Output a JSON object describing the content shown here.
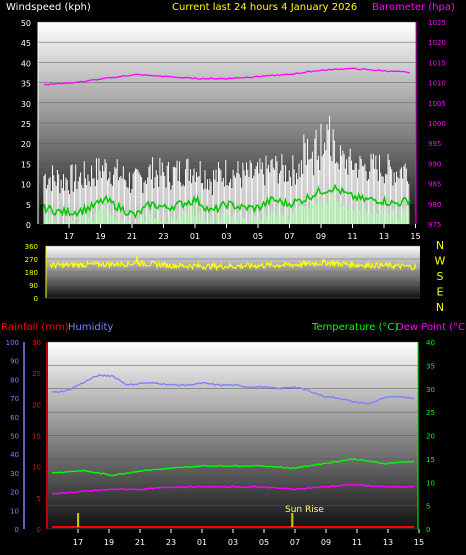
{
  "header": {
    "left_label": "Windspeed (kph)",
    "center_label": "Current last 24 hours 4 January 2026",
    "right_label": "Barometer (hpa)"
  },
  "colors": {
    "windspeed": "#ffffff",
    "wind_avg": "#00cc00",
    "wind_low": "#c8ffc8",
    "barometer": "#ff00ff",
    "wind_dir": "#ffff00",
    "rainfall": "#ff0000",
    "humidity": "#8080ff",
    "temperature": "#00ff00",
    "dewpoint": "#ff00ff",
    "sunrise": "#cccc00"
  },
  "chart_data": [
    {
      "type": "line",
      "name": "wind-barometer",
      "x_ticks": [
        "17",
        "19",
        "21",
        "23",
        "01",
        "03",
        "05",
        "07",
        "09",
        "11",
        "13",
        "15"
      ],
      "y_left": {
        "label": "Windspeed (kph)",
        "min": 0,
        "max": 50,
        "ticks": [
          0,
          5,
          10,
          15,
          20,
          25,
          30,
          35,
          40,
          45,
          50
        ]
      },
      "y_right": {
        "label": "Barometer (hpa)",
        "min": 975,
        "max": 1025,
        "ticks": [
          975,
          980,
          985,
          990,
          995,
          1000,
          1005,
          1010,
          1015,
          1020,
          1025
        ]
      },
      "series": [
        {
          "key": "barometer",
          "axis": "right",
          "x_hours": [
            0,
            2,
            4,
            6,
            8,
            10,
            12,
            14,
            16,
            18,
            20,
            22,
            24
          ],
          "values": [
            1009.5,
            1010,
            1011,
            1012,
            1011.5,
            1011,
            1011,
            1011.5,
            1012,
            1013,
            1013.5,
            1013,
            1012.5
          ]
        },
        {
          "key": "wind_avg",
          "axis": "left",
          "x_hours": [
            0,
            1,
            2,
            3,
            4,
            5,
            6,
            7,
            8,
            9,
            10,
            11,
            12,
            13,
            14,
            15,
            16,
            17,
            18,
            19,
            20,
            21,
            22,
            23,
            24
          ],
          "values": [
            4,
            3,
            3,
            4,
            6,
            4,
            2,
            5,
            4,
            5,
            6,
            3,
            5,
            4,
            4,
            6,
            5,
            6,
            8,
            9,
            7,
            6,
            6,
            5,
            6
          ]
        }
      ]
    },
    {
      "type": "line",
      "name": "wind-direction",
      "y_ticks": [
        0,
        90,
        180,
        270,
        360
      ],
      "y_min": 0,
      "y_max": 360,
      "compass_labels": [
        "N",
        "W",
        "S",
        "E",
        "N"
      ],
      "series": [
        {
          "key": "wind_dir",
          "x_hours": [
            0,
            2,
            4,
            6,
            8,
            10,
            12,
            14,
            16,
            18,
            20,
            22,
            24
          ],
          "values": [
            225,
            230,
            235,
            240,
            225,
            220,
            220,
            225,
            230,
            245,
            230,
            225,
            215
          ]
        }
      ]
    },
    {
      "type": "line",
      "name": "temp-humidity-rain",
      "legend": {
        "rainfall": "Rainfall (mm)",
        "humidity": "Humidity",
        "temperature": "Temperature (°C)",
        "dewpoint": "Dew Point (°C)"
      },
      "x_ticks": [
        "17",
        "19",
        "21",
        "23",
        "01",
        "03",
        "05",
        "07",
        "09",
        "11",
        "13",
        "15"
      ],
      "y_humidity": {
        "min": 0,
        "max": 100,
        "ticks": [
          0,
          10,
          20,
          30,
          40,
          50,
          60,
          70,
          80,
          90,
          100
        ]
      },
      "y_rain": {
        "min": 0,
        "max": 30,
        "ticks": [
          0,
          5,
          10,
          15,
          20,
          25,
          30
        ]
      },
      "y_temp": {
        "min": 0,
        "max": 40,
        "ticks": [
          0,
          5,
          10,
          15,
          20,
          25,
          30,
          35,
          40
        ]
      },
      "series": [
        {
          "key": "humidity",
          "axis": "humidity",
          "x_hours": [
            0,
            1,
            2,
            3,
            4,
            5,
            6,
            7,
            8,
            9,
            10,
            11,
            12,
            13,
            14,
            15,
            16,
            17,
            18,
            19,
            20,
            21,
            22,
            23,
            24
          ],
          "values": [
            73,
            74,
            78,
            82,
            82,
            77,
            78,
            78,
            77,
            77,
            78,
            77,
            77,
            76,
            76,
            75,
            76,
            74,
            71,
            70,
            68,
            67,
            70,
            71,
            70
          ]
        },
        {
          "key": "temperature",
          "axis": "temp",
          "x_hours": [
            0,
            2,
            4,
            6,
            8,
            10,
            12,
            14,
            16,
            18,
            20,
            22,
            24
          ],
          "values": [
            12,
            12.5,
            11.5,
            12.5,
            13,
            13.5,
            13.5,
            13.5,
            13,
            14,
            15,
            14,
            14.5
          ]
        },
        {
          "key": "dewpoint",
          "axis": "temp",
          "x_hours": [
            0,
            2,
            4,
            6,
            8,
            10,
            12,
            14,
            16,
            18,
            20,
            22,
            24
          ],
          "values": [
            7.5,
            8,
            8.5,
            8.5,
            9,
            9,
            9,
            9,
            8.5,
            9,
            9.5,
            9,
            9
          ]
        },
        {
          "key": "rainfall",
          "axis": "rain",
          "x_hours": [
            0,
            24
          ],
          "values": [
            0,
            0
          ]
        }
      ],
      "annotation": {
        "label": "Sun Rise",
        "marker_hours": [
          1.2,
          15.4
        ]
      }
    }
  ]
}
